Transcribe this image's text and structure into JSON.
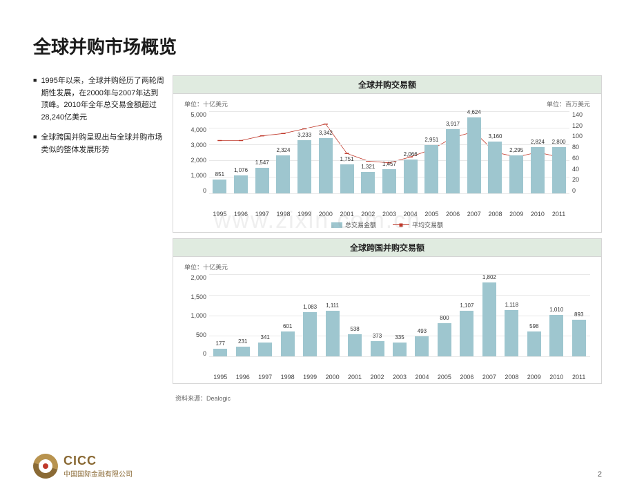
{
  "title": "全球并购市场概览",
  "bullets": [
    "1995年以来，全球并购经历了两轮周期性发展，在2000年与2007年达到顶峰。2010年全年总交易金额超过28,240亿美元",
    "全球跨国并购呈现出与全球并购市场类似的整体发展形势"
  ],
  "watermark": "www.zixin.com.cn",
  "chart1": {
    "title": "全球并购交易额",
    "unit_left": "单位：十亿美元",
    "unit_right": "单位：百万美元",
    "y_left_max": 5000,
    "y_left_ticks": [
      "5,000",
      "4,000",
      "3,000",
      "2,000",
      "1,000",
      "0"
    ],
    "y_right_max": 140,
    "y_right_ticks": [
      "140",
      "120",
      "100",
      "80",
      "60",
      "40",
      "20",
      "0"
    ],
    "bar_color": "#9ec6cf",
    "line_color": "#c0392b",
    "grid_color": "#e8e8e8",
    "categories": [
      "1995",
      "1996",
      "1997",
      "1998",
      "1999",
      "2000",
      "2001",
      "2002",
      "2003",
      "2004",
      "2005",
      "2006",
      "2007",
      "2008",
      "2009",
      "2010",
      "2011"
    ],
    "bars": [
      851,
      1076,
      1547,
      2324,
      3233,
      3342,
      1751,
      1321,
      1457,
      2066,
      2951,
      3917,
      4624,
      3160,
      2295,
      2824,
      2800
    ],
    "bar_labels": [
      "851",
      "1,076",
      "1,547",
      "2,324",
      "3,233",
      "3,342",
      "1,751",
      "1,321",
      "1,457",
      "2,066",
      "2,951",
      "3,917",
      "4,624",
      "3,160",
      "2,295",
      "2,824",
      "2,800"
    ],
    "line": [
      90,
      90,
      98,
      102,
      110,
      118,
      68,
      55,
      52,
      62,
      75,
      95,
      105,
      70,
      62,
      70,
      62
    ],
    "legend_bar": "总交易金额",
    "legend_line": "平均交易额"
  },
  "chart2": {
    "title": "全球跨国并购交易额",
    "unit_left": "单位：十亿美元",
    "y_left_max": 2000,
    "y_left_ticks": [
      "2,000",
      "1,500",
      "1,000",
      "500",
      "0"
    ],
    "bar_color": "#9ec6cf",
    "grid_color": "#e8e8e8",
    "categories": [
      "1995",
      "1996",
      "1997",
      "1998",
      "1999",
      "2000",
      "2001",
      "2002",
      "2003",
      "2004",
      "2005",
      "2006",
      "2007",
      "2008",
      "2009",
      "2010",
      "2011"
    ],
    "bars": [
      177,
      231,
      341,
      601,
      1083,
      1111,
      538,
      373,
      335,
      493,
      800,
      1107,
      1802,
      1118,
      598,
      1010,
      893
    ],
    "bar_labels": [
      "177",
      "231",
      "341",
      "601",
      "1,083",
      "1,111",
      "538",
      "373",
      "335",
      "493",
      "800",
      "1,107",
      "1,802",
      "1,118",
      "598",
      "1,010",
      "893"
    ]
  },
  "source_label": "资料来源：",
  "source": "Dealogic",
  "logo": {
    "en": "CICC",
    "cn": "中国国际金融有限公司"
  },
  "page_num": "2"
}
